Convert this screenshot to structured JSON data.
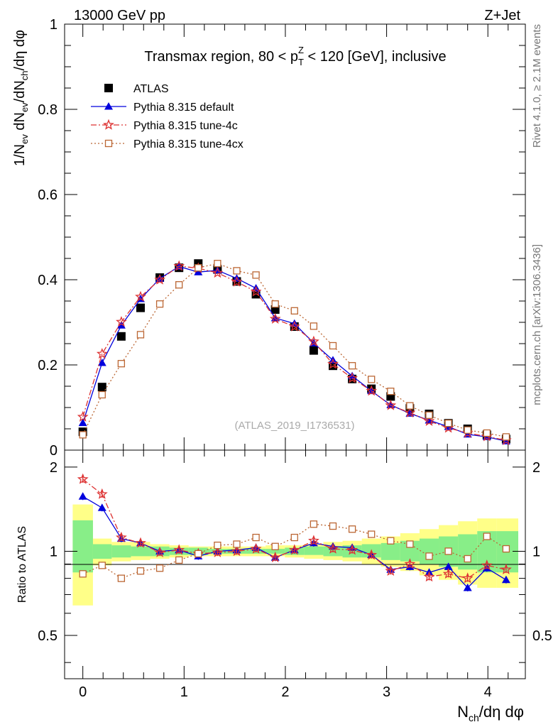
{
  "header": {
    "left": "13000 GeV pp",
    "right": "Z+Jet",
    "side_top": "Rivet 4.1.0, ≥ 2.1M events",
    "side_bottom": "mcplots.cern.ch [arXiv:1306.3436]"
  },
  "chart_data": [
    {
      "type": "line",
      "panel": "main",
      "title": "Transmax region, 80 < pT^Z < 120 [GeV], inclusive",
      "title_parts": {
        "before": "Transmax region, 80 < p",
        "sub": "T",
        "sup": "Z",
        "after": " < 120 [GeV], inclusive"
      },
      "ylabel": "1/N_ev dN_ev/dN_ch/dη dφ",
      "ylim": [
        0,
        1.0
      ],
      "yticks": [
        "0",
        "0.2",
        "0.4",
        "0.6",
        "0.8",
        "1"
      ],
      "watermark": "(ATLAS_2019_I1736531)",
      "x": [
        0.0,
        0.19,
        0.38,
        0.57,
        0.76,
        0.95,
        1.14,
        1.33,
        1.52,
        1.71,
        1.9,
        2.09,
        2.28,
        2.47,
        2.66,
        2.85,
        3.04,
        3.23,
        3.42,
        3.61,
        3.8,
        3.99,
        4.18
      ],
      "series": [
        {
          "name": "ATLAS",
          "marker": "square",
          "color": "#000000",
          "values": [
            0.043,
            0.148,
            0.267,
            0.334,
            0.405,
            0.428,
            0.438,
            0.424,
            0.396,
            0.366,
            0.33,
            0.29,
            0.234,
            0.198,
            0.167,
            0.144,
            0.126,
            0.098,
            0.085,
            0.063,
            0.05,
            0.036,
            0.026
          ]
        },
        {
          "name": "Pythia 8.315 default",
          "marker": "triangle",
          "color": "#0000dd",
          "dash": "solid",
          "values": [
            0.064,
            0.205,
            0.293,
            0.355,
            0.403,
            0.431,
            0.418,
            0.422,
            0.403,
            0.38,
            0.31,
            0.297,
            0.251,
            0.211,
            0.174,
            0.139,
            0.106,
            0.086,
            0.07,
            0.055,
            0.037,
            0.031,
            0.021
          ]
        },
        {
          "name": "Pythia 8.315 tune-4c",
          "marker": "star",
          "color": "#dd3333",
          "dash": "dashdot",
          "values": [
            0.078,
            0.226,
            0.301,
            0.36,
            0.4,
            0.432,
            0.427,
            0.416,
            0.395,
            0.372,
            0.308,
            0.29,
            0.255,
            0.202,
            0.169,
            0.139,
            0.105,
            0.088,
            0.068,
            0.052,
            0.04,
            0.032,
            0.023
          ]
        },
        {
          "name": "Pythia 8.315 tune-4cx",
          "marker": "opensquare",
          "color": "#bb6633",
          "dash": "dotted",
          "values": [
            0.036,
            0.13,
            0.203,
            0.271,
            0.343,
            0.388,
            0.428,
            0.438,
            0.421,
            0.411,
            0.343,
            0.327,
            0.291,
            0.245,
            0.198,
            0.166,
            0.138,
            0.104,
            0.082,
            0.063,
            0.047,
            0.04,
            0.031
          ]
        }
      ]
    },
    {
      "type": "line",
      "panel": "ratio",
      "ylabel": "Ratio to ATLAS",
      "ylim": [
        0.35,
        2.3
      ],
      "yticks": [
        "0.5",
        "1",
        "2"
      ],
      "xlabel": "N_ch/dη dφ",
      "xlim": [
        -0.18,
        4.37
      ],
      "xticks": [
        "0",
        "1",
        "2",
        "3",
        "4"
      ],
      "band_edges": [
        -0.1,
        0.1,
        0.285,
        0.475,
        0.665,
        0.855,
        1.045,
        1.235,
        1.425,
        1.615,
        1.805,
        1.995,
        2.185,
        2.375,
        2.565,
        2.755,
        2.945,
        3.135,
        3.325,
        3.515,
        3.705,
        3.895,
        4.085,
        4.3
      ],
      "band_yellow": [
        [
          0.64,
          1.47
        ],
        [
          0.89,
          1.11
        ],
        [
          0.92,
          1.08
        ],
        [
          0.93,
          1.08
        ],
        [
          0.94,
          1.06
        ],
        [
          0.95,
          1.05
        ],
        [
          0.96,
          1.04
        ],
        [
          0.96,
          1.04
        ],
        [
          0.96,
          1.04
        ],
        [
          0.96,
          1.04
        ],
        [
          0.96,
          1.05
        ],
        [
          0.95,
          1.05
        ],
        [
          0.94,
          1.06
        ],
        [
          0.93,
          1.08
        ],
        [
          0.92,
          1.09
        ],
        [
          0.9,
          1.11
        ],
        [
          0.88,
          1.13
        ],
        [
          0.85,
          1.16
        ],
        [
          0.82,
          1.2
        ],
        [
          0.79,
          1.24
        ],
        [
          0.76,
          1.28
        ],
        [
          0.74,
          1.31
        ],
        [
          0.74,
          1.31
        ]
      ],
      "band_green": [
        [
          0.84,
          1.29
        ],
        [
          0.94,
          1.06
        ],
        [
          0.95,
          1.05
        ],
        [
          0.96,
          1.04
        ],
        [
          0.96,
          1.04
        ],
        [
          0.97,
          1.03
        ],
        [
          0.97,
          1.03
        ],
        [
          0.98,
          1.02
        ],
        [
          0.98,
          1.02
        ],
        [
          0.98,
          1.02
        ],
        [
          0.98,
          1.02
        ],
        [
          0.97,
          1.03
        ],
        [
          0.97,
          1.04
        ],
        [
          0.96,
          1.04
        ],
        [
          0.95,
          1.05
        ],
        [
          0.95,
          1.06
        ],
        [
          0.93,
          1.07
        ],
        [
          0.92,
          1.09
        ],
        [
          0.9,
          1.11
        ],
        [
          0.88,
          1.13
        ],
        [
          0.86,
          1.15
        ],
        [
          0.84,
          1.18
        ],
        [
          0.84,
          1.18
        ]
      ],
      "series": [
        {
          "name": "Pythia 8.315 default",
          "marker": "triangle",
          "color": "#0000dd",
          "dash": "solid",
          "values": [
            1.57,
            1.43,
            1.11,
            1.07,
            1.0,
            1.01,
            0.96,
            1.0,
            1.01,
            1.03,
            0.95,
            1.01,
            1.07,
            1.04,
            1.03,
            0.97,
            0.86,
            0.88,
            0.84,
            0.88,
            0.74,
            0.87,
            0.79
          ]
        },
        {
          "name": "Pythia 8.315 tune-4c",
          "marker": "star",
          "color": "#dd3333",
          "dash": "dashdot",
          "values": [
            1.81,
            1.6,
            1.12,
            1.07,
            0.99,
            1.01,
            0.98,
            0.99,
            1.0,
            1.02,
            0.95,
            1.01,
            1.09,
            1.02,
            1.01,
            0.97,
            0.85,
            0.9,
            0.81,
            0.83,
            0.8,
            0.89,
            0.86
          ]
        },
        {
          "name": "Pythia 8.315 tune-4cx",
          "marker": "opensquare",
          "color": "#bb6633",
          "dash": "dotted",
          "values": [
            0.83,
            0.89,
            0.8,
            0.85,
            0.87,
            0.93,
            0.98,
            1.05,
            1.06,
            1.12,
            1.04,
            1.12,
            1.25,
            1.23,
            1.2,
            1.15,
            1.09,
            1.06,
            0.96,
            1.0,
            0.94,
            1.13,
            1.02
          ]
        }
      ]
    }
  ]
}
